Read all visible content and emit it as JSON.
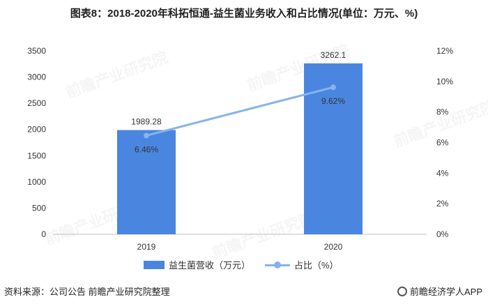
{
  "header": {
    "title": "图表8：2018-2020年科拓恒通-益生菌业务收入和占比情况(单位：万元、%)"
  },
  "watermark": "前瞻产业研究院",
  "chart_data": {
    "type": "bar+line",
    "categories": [
      "2019",
      "2020"
    ],
    "series": [
      {
        "name": "益生菌营收（万元）",
        "kind": "bar",
        "axis": "left",
        "color": "#4a86e0",
        "values": [
          1989.28,
          3262.1
        ],
        "labels": [
          "1989.28",
          "3262.1"
        ]
      },
      {
        "name": "占比（%）",
        "kind": "line",
        "axis": "right",
        "color": "#87b3ea",
        "values": [
          6.46,
          9.62
        ],
        "labels": [
          "6.46%",
          "9.62%"
        ]
      }
    ],
    "y_left": {
      "min": 0,
      "max": 3500,
      "ticks": [
        "0",
        "500",
        "1000",
        "1500",
        "2000",
        "2500",
        "3000",
        "3500"
      ]
    },
    "y_right": {
      "min": 0,
      "max": 12,
      "ticks": [
        "0%",
        "2%",
        "4%",
        "6%",
        "8%",
        "10%",
        "12%"
      ]
    },
    "grid": false,
    "legend_position": "bottom"
  },
  "legend": {
    "bar_label": "益生菌营收（万元）",
    "line_label": "占比（%）"
  },
  "footer": {
    "source": "资料来源：公司公告 前瞻产业研究院整理",
    "brand": "前瞻经济学人APP"
  }
}
